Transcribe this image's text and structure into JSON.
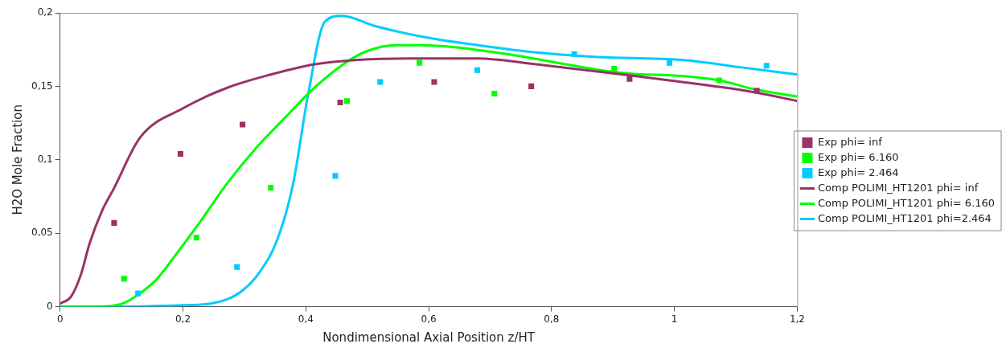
{
  "chart_data": {
    "type": "line",
    "xlabel": "Nondimensional Axial Position z/HT",
    "ylabel": "H2O Mole Fraction",
    "xlim": [
      0,
      1.2
    ],
    "xticks": [
      0,
      {
        "value": 0.2,
        "label": "0,2"
      },
      {
        "value": 0.4,
        "label": "0,4"
      },
      {
        "value": 0.6,
        "label": "0,6"
      },
      {
        "value": 0.8,
        "label": "0,8"
      },
      1,
      {
        "value": 1.2,
        "label": "1,2"
      }
    ],
    "ylim": [
      0,
      0.2
    ],
    "yticks": [
      0,
      {
        "value": 0.05,
        "label": "0,05"
      },
      {
        "value": 0.1,
        "label": "0,1"
      },
      {
        "value": 0.15,
        "label": "0,15"
      },
      {
        "value": 0.2,
        "label": "0,2"
      }
    ],
    "grid": false,
    "legend": "right",
    "series": [
      {
        "name": "Exp phi= inf",
        "type": "scatter",
        "marker": "square",
        "color": "#993366",
        "x": [
          0.088,
          0.196,
          0.297,
          0.456,
          0.609,
          0.767,
          0.927,
          1.134
        ],
        "values": [
          0.057,
          0.104,
          0.124,
          0.139,
          0.153,
          0.15,
          0.155,
          0.147
        ]
      },
      {
        "name": "Exp phi= 6.160",
        "type": "scatter",
        "marker": "square",
        "color": "#00ff00",
        "x": [
          0.104,
          0.222,
          0.343,
          0.467,
          0.585,
          0.707,
          0.902,
          1.073
        ],
        "values": [
          0.019,
          0.047,
          0.081,
          0.14,
          0.166,
          0.145,
          0.162,
          0.154
        ]
      },
      {
        "name": "Exp phi= 2.464",
        "type": "scatter",
        "marker": "square",
        "color": "#00ccff",
        "x": [
          0.127,
          0.288,
          0.448,
          0.521,
          0.679,
          0.837,
          0.992,
          1.15
        ],
        "values": [
          0.009,
          0.027,
          0.089,
          0.153,
          0.161,
          0.172,
          0.166,
          0.164
        ]
      },
      {
        "name": "Comp POLIMI_HT1201 phi= inf",
        "type": "line",
        "marker": "none",
        "color": "#993366",
        "x": [
          0,
          0.018,
          0.034,
          0.048,
          0.068,
          0.087,
          0.13,
          0.2,
          0.272,
          0.343,
          0.414,
          0.485,
          0.585,
          0.68,
          0.775,
          0.917,
          1.012,
          1.13,
          1.2
        ],
        "values": [
          0.002,
          0.007,
          0.022,
          0.043,
          0.065,
          0.08,
          0.115,
          0.135,
          0.149,
          0.158,
          0.165,
          0.168,
          0.169,
          0.169,
          0.165,
          0.158,
          0.153,
          0.146,
          0.14
        ]
      },
      {
        "name": "Comp POLIMI_HT1201 phi= 6.160",
        "type": "line",
        "marker": "none",
        "color": "#00ff00",
        "x": [
          0,
          0.06,
          0.101,
          0.13,
          0.158,
          0.186,
          0.225,
          0.272,
          0.319,
          0.367,
          0.414,
          0.461,
          0.5,
          0.547,
          0.585,
          0.727,
          0.823,
          0.917,
          1.012,
          1.073,
          1.13,
          1.2
        ],
        "values": [
          0,
          0,
          0.002,
          0.009,
          0.019,
          0.034,
          0.056,
          0.084,
          0.108,
          0.129,
          0.149,
          0.165,
          0.174,
          0.178,
          0.178,
          0.172,
          0.165,
          0.159,
          0.157,
          0.154,
          0.148,
          0.143
        ]
      },
      {
        "name": "Comp POLIMI_HT1201 phi=2.464",
        "type": "line",
        "marker": "none",
        "color": "#00ccff",
        "x": [
          0,
          0.1,
          0.2,
          0.243,
          0.272,
          0.297,
          0.324,
          0.353,
          0.379,
          0.404,
          0.431,
          0.459,
          0.513,
          0.599,
          0.68,
          0.775,
          0.87,
          1.012,
          1.107,
          1.2
        ],
        "values": [
          0,
          0,
          0.001,
          0.002,
          0.005,
          0.011,
          0.023,
          0.045,
          0.083,
          0.145,
          0.194,
          0.198,
          0.191,
          0.183,
          0.178,
          0.173,
          0.17,
          0.168,
          0.163,
          0.158
        ]
      }
    ]
  }
}
